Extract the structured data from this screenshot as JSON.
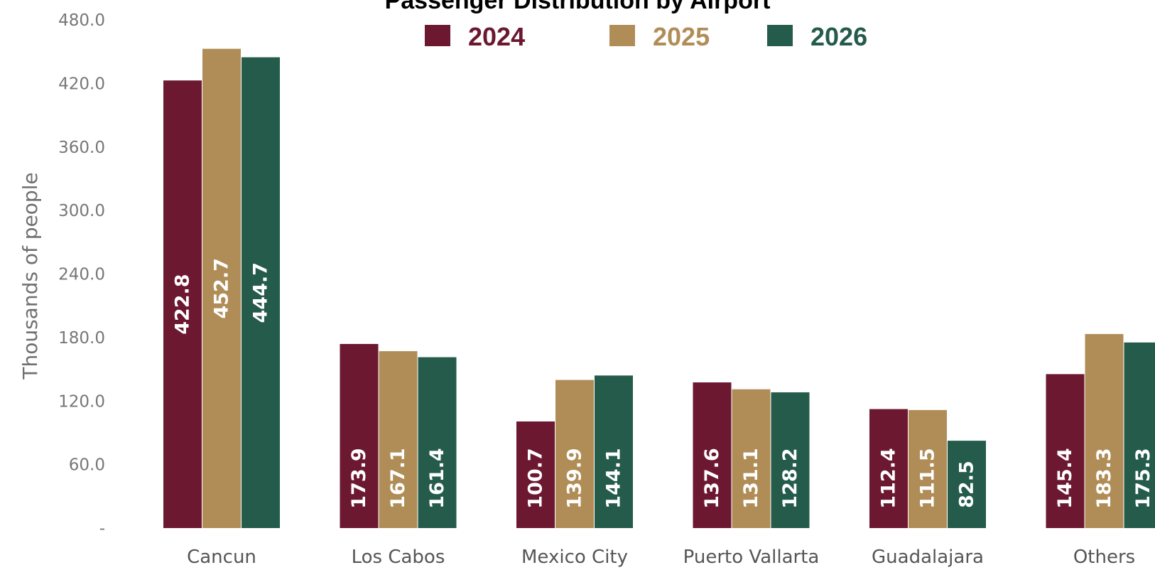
{
  "chart_data": {
    "type": "bar",
    "title": "Passenger Distribution by Airport",
    "ylabel": "Thousands of people",
    "xlabel": "",
    "ylim": [
      0,
      480
    ],
    "y_ticks": [
      0,
      60,
      120,
      180,
      240,
      300,
      360,
      420,
      480
    ],
    "y_tick_labels": [
      "-",
      "60.0",
      "120.0",
      "180.0",
      "240.0",
      "300.0",
      "360.0",
      "420.0",
      "480.0"
    ],
    "grid": false,
    "legend_position": "top-center",
    "categories": [
      "Cancun",
      "Los Cabos",
      "Mexico City",
      "Puerto Vallarta",
      "Guadalajara",
      "Others"
    ],
    "series": [
      {
        "name": "2024",
        "color": "#6b1830",
        "values": [
          422.8,
          173.9,
          100.7,
          137.6,
          112.4,
          145.4
        ],
        "labels": [
          "422.8",
          "173.9",
          "100.7",
          "137.6",
          "112.4",
          "145.4"
        ]
      },
      {
        "name": "2025",
        "color": "#b08d57",
        "values": [
          452.7,
          167.1,
          139.9,
          131.1,
          111.5,
          183.3
        ],
        "labels": [
          "452.7",
          "167.1",
          "139.9",
          "131.1",
          "111.5",
          "183.3"
        ]
      },
      {
        "name": "2026",
        "color": "#245b4b",
        "values": [
          444.7,
          161.4,
          144.1,
          128.2,
          82.5,
          175.3
        ],
        "labels": [
          "444.7",
          "161.4",
          "144.1",
          "128.2",
          "82.5",
          "175.3"
        ]
      }
    ],
    "legend_text_colors": [
      "#6b1830",
      "#b08d57",
      "#245b4b"
    ]
  }
}
